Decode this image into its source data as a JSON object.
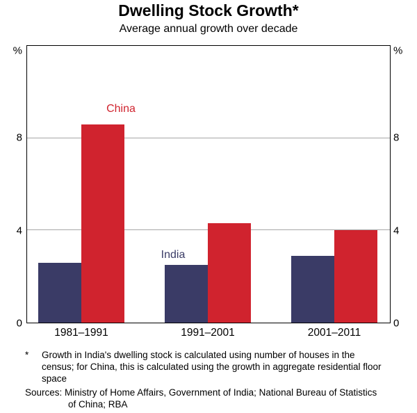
{
  "title": "Dwelling Stock Growth*",
  "subtitle": "Average annual growth over decade",
  "chart_data": {
    "type": "bar",
    "categories": [
      "1981–1991",
      "1991–2001",
      "2001–2011"
    ],
    "series": [
      {
        "name": "India",
        "color": "#3A3B66",
        "values": [
          2.6,
          2.5,
          2.9
        ]
      },
      {
        "name": "China",
        "color": "#D0232E",
        "values": [
          8.6,
          4.3,
          4.0
        ]
      }
    ],
    "unit": "%",
    "yticks": [
      0,
      4,
      8
    ],
    "ylim": [
      0,
      12
    ],
    "grid": "horizontal",
    "legend": "in-plot series labels",
    "gridline_color": "#A6A6A6"
  },
  "footnote": {
    "marker": "*",
    "text": "Growth in India's dwelling stock is calculated using number of houses in the census; for China, this is calculated using the growth in aggregate residential floor space"
  },
  "sources": "Sources: Ministry of Home Affairs, Government of India; National Bureau of Statistics of China; RBA"
}
